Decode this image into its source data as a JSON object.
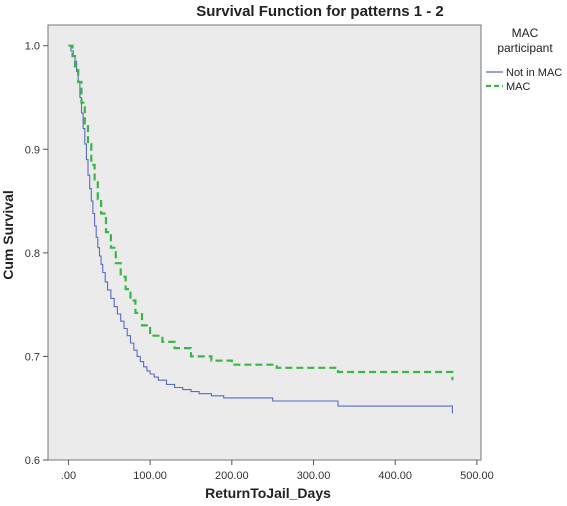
{
  "chart_data": {
    "type": "line",
    "title": "Survival Function for patterns 1 - 2",
    "xlabel": "ReturnToJail_Days",
    "ylabel": "Cum Survival",
    "xlim": [
      -25,
      505
    ],
    "ylim": [
      0.6,
      1.02
    ],
    "x_ticks": [
      0,
      100,
      200,
      300,
      400,
      500
    ],
    "x_tick_labels": [
      ".00",
      "100.00",
      "200.00",
      "300.00",
      "400.00",
      "500.00"
    ],
    "y_ticks": [
      0.6,
      0.7,
      0.8,
      0.9,
      1.0
    ],
    "y_tick_labels": [
      "0.6",
      "0.7",
      "0.8",
      "0.9",
      "1.0"
    ],
    "grid": false,
    "step": true,
    "legend": {
      "title": "MAC participant",
      "placement": "right",
      "entries": [
        "Not in MAC",
        "MAC"
      ]
    },
    "series": [
      {
        "name": "Not in MAC",
        "color": "#5b6bbf",
        "dash": "solid",
        "x": [
          0,
          3,
          6,
          8,
          10,
          12,
          14,
          16,
          18,
          20,
          22,
          24,
          26,
          28,
          30,
          32,
          34,
          36,
          38,
          40,
          42,
          45,
          48,
          52,
          56,
          60,
          64,
          68,
          72,
          76,
          80,
          84,
          88,
          92,
          96,
          100,
          105,
          110,
          120,
          130,
          140,
          150,
          160,
          175,
          190,
          250,
          330,
          470
        ],
        "y": [
          1.0,
          0.995,
          0.99,
          0.985,
          0.975,
          0.965,
          0.95,
          0.935,
          0.92,
          0.905,
          0.89,
          0.875,
          0.862,
          0.85,
          0.838,
          0.826,
          0.815,
          0.805,
          0.797,
          0.789,
          0.781,
          0.772,
          0.764,
          0.756,
          0.748,
          0.741,
          0.734,
          0.727,
          0.72,
          0.713,
          0.706,
          0.7,
          0.695,
          0.69,
          0.686,
          0.683,
          0.68,
          0.677,
          0.673,
          0.67,
          0.668,
          0.666,
          0.664,
          0.662,
          0.66,
          0.657,
          0.652,
          0.645
        ]
      },
      {
        "name": "MAC",
        "color": "#3bb54a",
        "dash": "dashed",
        "x": [
          0,
          5,
          8,
          12,
          16,
          20,
          24,
          28,
          32,
          36,
          40,
          46,
          52,
          58,
          64,
          70,
          76,
          82,
          90,
          100,
          115,
          130,
          150,
          175,
          200,
          255,
          330,
          470
        ],
        "y": [
          1.0,
          0.99,
          0.98,
          0.965,
          0.945,
          0.925,
          0.905,
          0.885,
          0.868,
          0.852,
          0.838,
          0.82,
          0.805,
          0.79,
          0.777,
          0.765,
          0.754,
          0.742,
          0.73,
          0.72,
          0.714,
          0.708,
          0.7,
          0.696,
          0.692,
          0.689,
          0.685,
          0.677
        ]
      }
    ]
  }
}
